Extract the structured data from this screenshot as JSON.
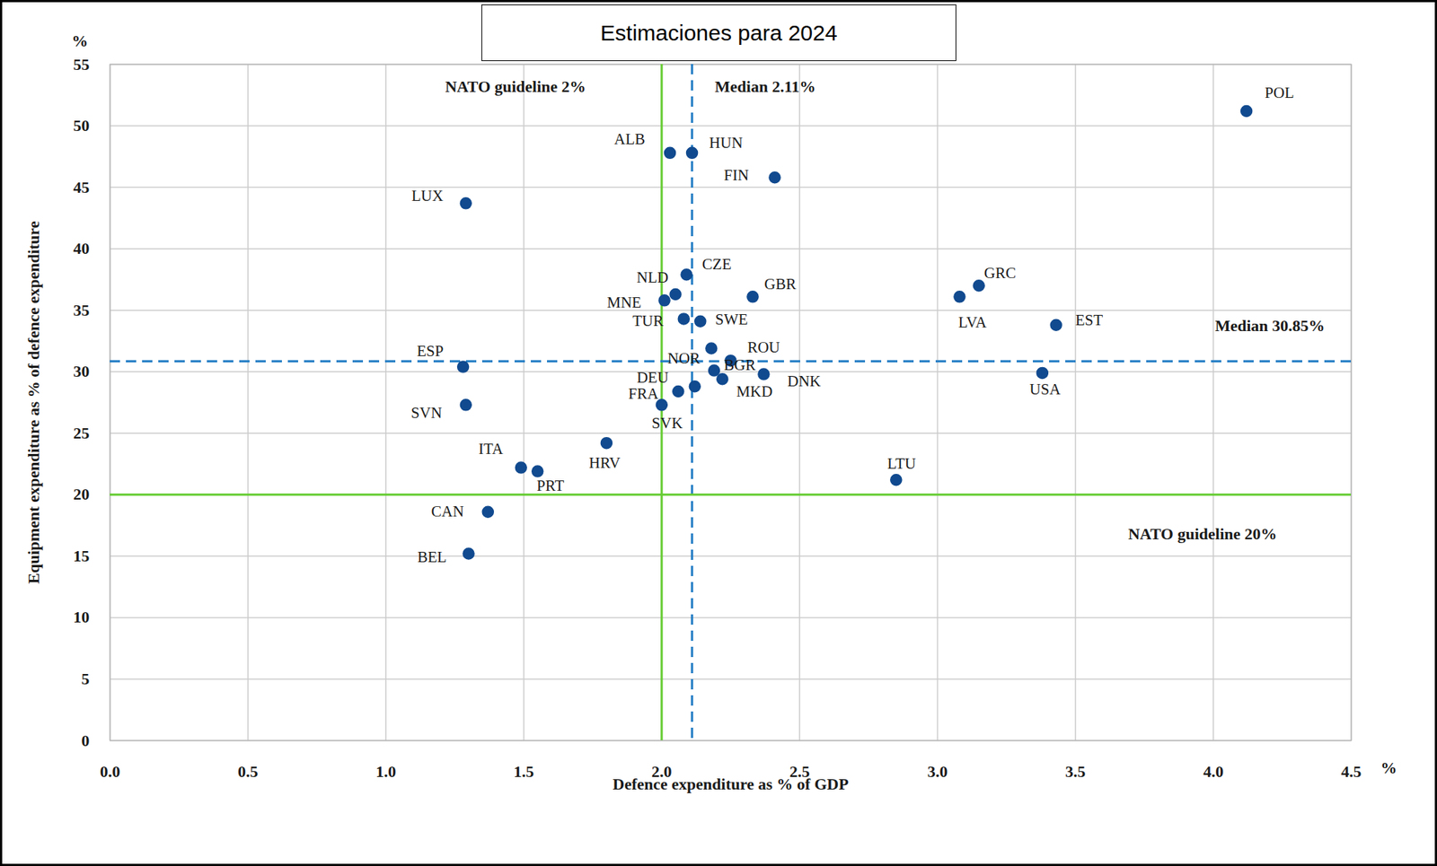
{
  "chart_data": {
    "type": "scatter",
    "title": "Estimaciones para 2024",
    "x_label": "Defence expenditure as % of GDP",
    "y_label": "Equipment expenditure as % of defence expenditure",
    "x_unit": "%",
    "y_unit": "%",
    "labels": [
      "POL",
      "ALB",
      "HUN",
      "FIN",
      "LUX",
      "CZE",
      "NLD",
      "MNE",
      "GBR",
      "GRC",
      "LVA",
      "EST",
      "TUR",
      "SWE",
      "ESP",
      "NOR",
      "ROU",
      "BGR",
      "MKD",
      "DNK",
      "USA",
      "DEU",
      "FRA",
      "SVK",
      "SVN",
      "HRV",
      "ITA",
      "PRT",
      "LTU",
      "CAN",
      "BEL"
    ],
    "x": [
      4.12,
      2.03,
      2.11,
      2.41,
      1.29,
      2.09,
      2.05,
      2.01,
      2.33,
      3.15,
      3.08,
      3.43,
      2.08,
      2.14,
      1.28,
      2.18,
      2.25,
      2.19,
      2.22,
      2.37,
      3.38,
      2.12,
      2.06,
      2.0,
      1.29,
      1.8,
      1.49,
      1.55,
      2.85,
      1.37,
      1.3
    ],
    "values": [
      51.2,
      47.8,
      47.8,
      45.8,
      43.7,
      37.9,
      36.3,
      35.8,
      36.1,
      37.0,
      36.1,
      33.8,
      34.3,
      34.1,
      30.4,
      31.9,
      30.9,
      30.1,
      29.4,
      29.8,
      29.9,
      28.8,
      28.4,
      27.3,
      27.3,
      24.2,
      22.2,
      21.9,
      21.2,
      18.6,
      15.2
    ],
    "color": "#114a8f",
    "marker": "circle",
    "xlim": [
      0,
      4.5
    ],
    "ylim": [
      0,
      55
    ],
    "xticks": [
      {
        "value": 0,
        "label": "0.0"
      },
      0.5,
      {
        "value": 1,
        "label": "1.0"
      },
      1.5,
      {
        "value": 2,
        "label": "2.0"
      },
      2.5,
      {
        "value": 3,
        "label": "3.0"
      },
      3.5,
      {
        "value": 4,
        "label": "4.0"
      },
      4.5
    ],
    "yticks": [
      0,
      5,
      10,
      15,
      20,
      25,
      30,
      35,
      40,
      45,
      50,
      55
    ],
    "grid": true,
    "reference_lines": [
      {
        "axis": "x",
        "value": 2,
        "label": "NATO guideline 2%",
        "color": "#66cc33",
        "line_style": "solid"
      },
      {
        "axis": "x",
        "value": 2.11,
        "label": "Median 2.11%",
        "color": "#1f7bc4",
        "line_style": "dashed"
      },
      {
        "axis": "y",
        "value": 30.85,
        "label": "Median 30.85%",
        "color": "#1f7bc4",
        "line_style": "dashed"
      },
      {
        "axis": "y",
        "value": 20,
        "label": "NATO guideline 20%",
        "color": "#66cc33",
        "line_style": "solid"
      }
    ]
  }
}
